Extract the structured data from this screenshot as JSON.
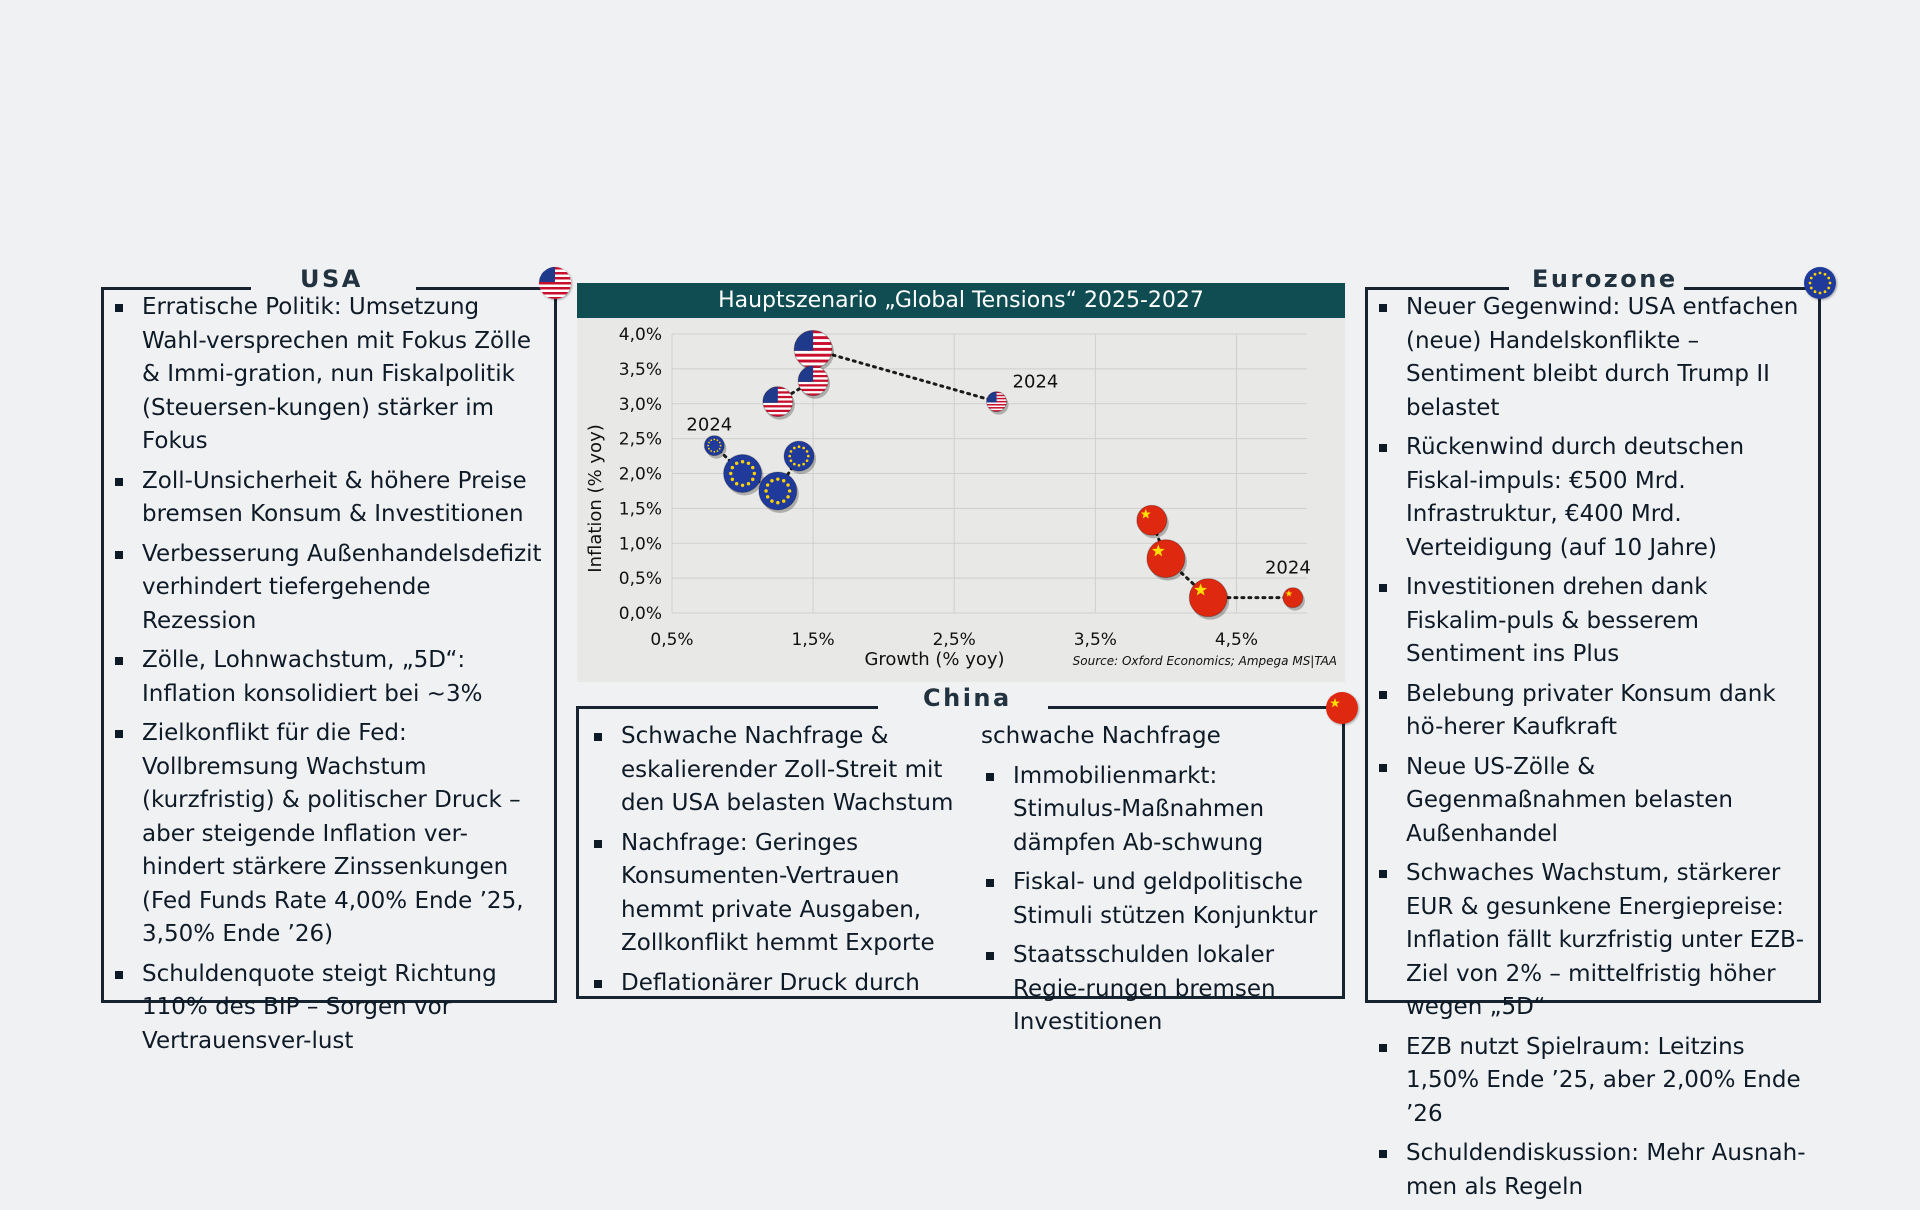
{
  "usa": {
    "title": "USA",
    "flag_icon": "us-flag-icon",
    "bullets": [
      "Erratische Politik: Umsetzung Wahl-versprechen mit Fokus Zölle & Immi-gration, nun Fiskalpolitik (Steuersen-kungen) stärker im Fokus",
      "Zoll-Unsicherheit & höhere Preise bremsen Konsum & Investitionen",
      "Verbesserung Außenhandelsdefizit verhindert tiefergehende Rezession",
      "Zölle, Lohnwachstum, „5D“: Inflation konsolidiert bei ~3%",
      "Zielkonflikt für die Fed: Vollbremsung Wachstum (kurzfristig) & politischer Druck – aber steigende Inflation ver-hindert stärkere Zinssenkungen (Fed Funds Rate 4,00% Ende ’25, 3,50% Ende ’26)",
      "Schuldenquote steigt Richtung 110% des BIP – Sorgen vor Vertrauensver-lust"
    ]
  },
  "eurozone": {
    "title": "Eurozone",
    "flag_icon": "eu-flag-icon",
    "bullets": [
      "Neuer Gegenwind: USA entfachen (neue) Handelskonflikte – Sentiment bleibt durch Trump II belastet",
      "Rückenwind durch deutschen Fiskal-impuls: €500 Mrd. Infrastruktur, €400 Mrd. Verteidigung (auf 10 Jahre)",
      "Investitionen drehen dank Fiskalim-puls & besserem Sentiment ins Plus",
      "Belebung privater Konsum dank hö-herer Kaufkraft",
      "Neue US-Zölle & Gegenmaßnahmen belasten Außenhandel",
      "Schwaches Wachstum, stärkerer EUR & gesunkene Energiepreise: Inflation fällt kurzfristig unter EZB-Ziel von 2% – mittelfristig höher wegen „5D“",
      "EZB nutzt Spielraum: Leitzins 1,50% Ende ’25, aber 2,00% Ende ’26",
      "Schuldendiskussion: Mehr Ausnah-men als Regeln"
    ]
  },
  "china": {
    "title": "China",
    "flag_icon": "china-flag-icon",
    "col1": [
      "Schwache Nachfrage & eskalierender Zoll-Streit mit den USA belasten Wachstum",
      "Nachfrage: Geringes Konsumenten-Vertrauen hemmt private Ausgaben, Zollkonflikt hemmt Exporte",
      "Deflationärer Druck durch"
    ],
    "col2_continuation": "schwache Nachfrage",
    "col2": [
      "Immobilienmarkt: Stimulus-Maßnahmen dämpfen Ab-schwung",
      "Fiskal- und geldpolitische Stimuli stützen Konjunktur",
      "Staatsschulden lokaler Regie-rungen bremsen Investitionen"
    ]
  },
  "chart_header": "Hauptszenario „Global Tensions“ 2025-2027",
  "chart_data": {
    "type": "scatter",
    "title": "Hauptszenario „Global Tensions“ 2025-2027",
    "xlabel": "Growth (% yoy)",
    "ylabel": "Inflation (% yoy)",
    "xlim": [
      0.5,
      5.0
    ],
    "ylim": [
      0.0,
      4.0
    ],
    "x_ticks": [
      0.5,
      1.5,
      2.5,
      3.5,
      4.5
    ],
    "x_tick_labels": [
      "0,5%",
      "1,5%",
      "2,5%",
      "3,5%",
      "4,5%"
    ],
    "y_ticks": [
      0.0,
      0.5,
      1.0,
      1.5,
      2.0,
      2.5,
      3.0,
      3.5,
      4.0
    ],
    "y_tick_labels": [
      "0,0%",
      "0,5%",
      "1,0%",
      "1,5%",
      "2,0%",
      "2,5%",
      "3,0%",
      "3,5%",
      "4,0%"
    ],
    "grid": true,
    "source": "Source: Oxford Economics; Ampega MS|TAA",
    "annotation_label": "2024",
    "series": [
      {
        "name": "USA",
        "icon": "us-flag-icon",
        "points": [
          {
            "x": 2.8,
            "y": 3.03,
            "size": "small"
          },
          {
            "x": 1.5,
            "y": 3.78,
            "size": "large"
          },
          {
            "x": 1.5,
            "y": 3.33,
            "size": "medium"
          },
          {
            "x": 1.25,
            "y": 3.03,
            "size": "medium"
          }
        ]
      },
      {
        "name": "Eurozone",
        "icon": "eu-flag-icon",
        "points": [
          {
            "x": 0.8,
            "y": 2.4,
            "size": "small"
          },
          {
            "x": 1.0,
            "y": 2.0,
            "size": "large"
          },
          {
            "x": 1.25,
            "y": 1.75,
            "size": "large"
          },
          {
            "x": 1.4,
            "y": 2.25,
            "size": "medium"
          }
        ]
      },
      {
        "name": "China",
        "icon": "china-flag-icon",
        "points": [
          {
            "x": 4.9,
            "y": 0.22,
            "size": "small"
          },
          {
            "x": 4.3,
            "y": 0.22,
            "size": "large"
          },
          {
            "x": 4.0,
            "y": 0.78,
            "size": "large"
          },
          {
            "x": 3.9,
            "y": 1.33,
            "size": "medium"
          }
        ]
      }
    ]
  }
}
